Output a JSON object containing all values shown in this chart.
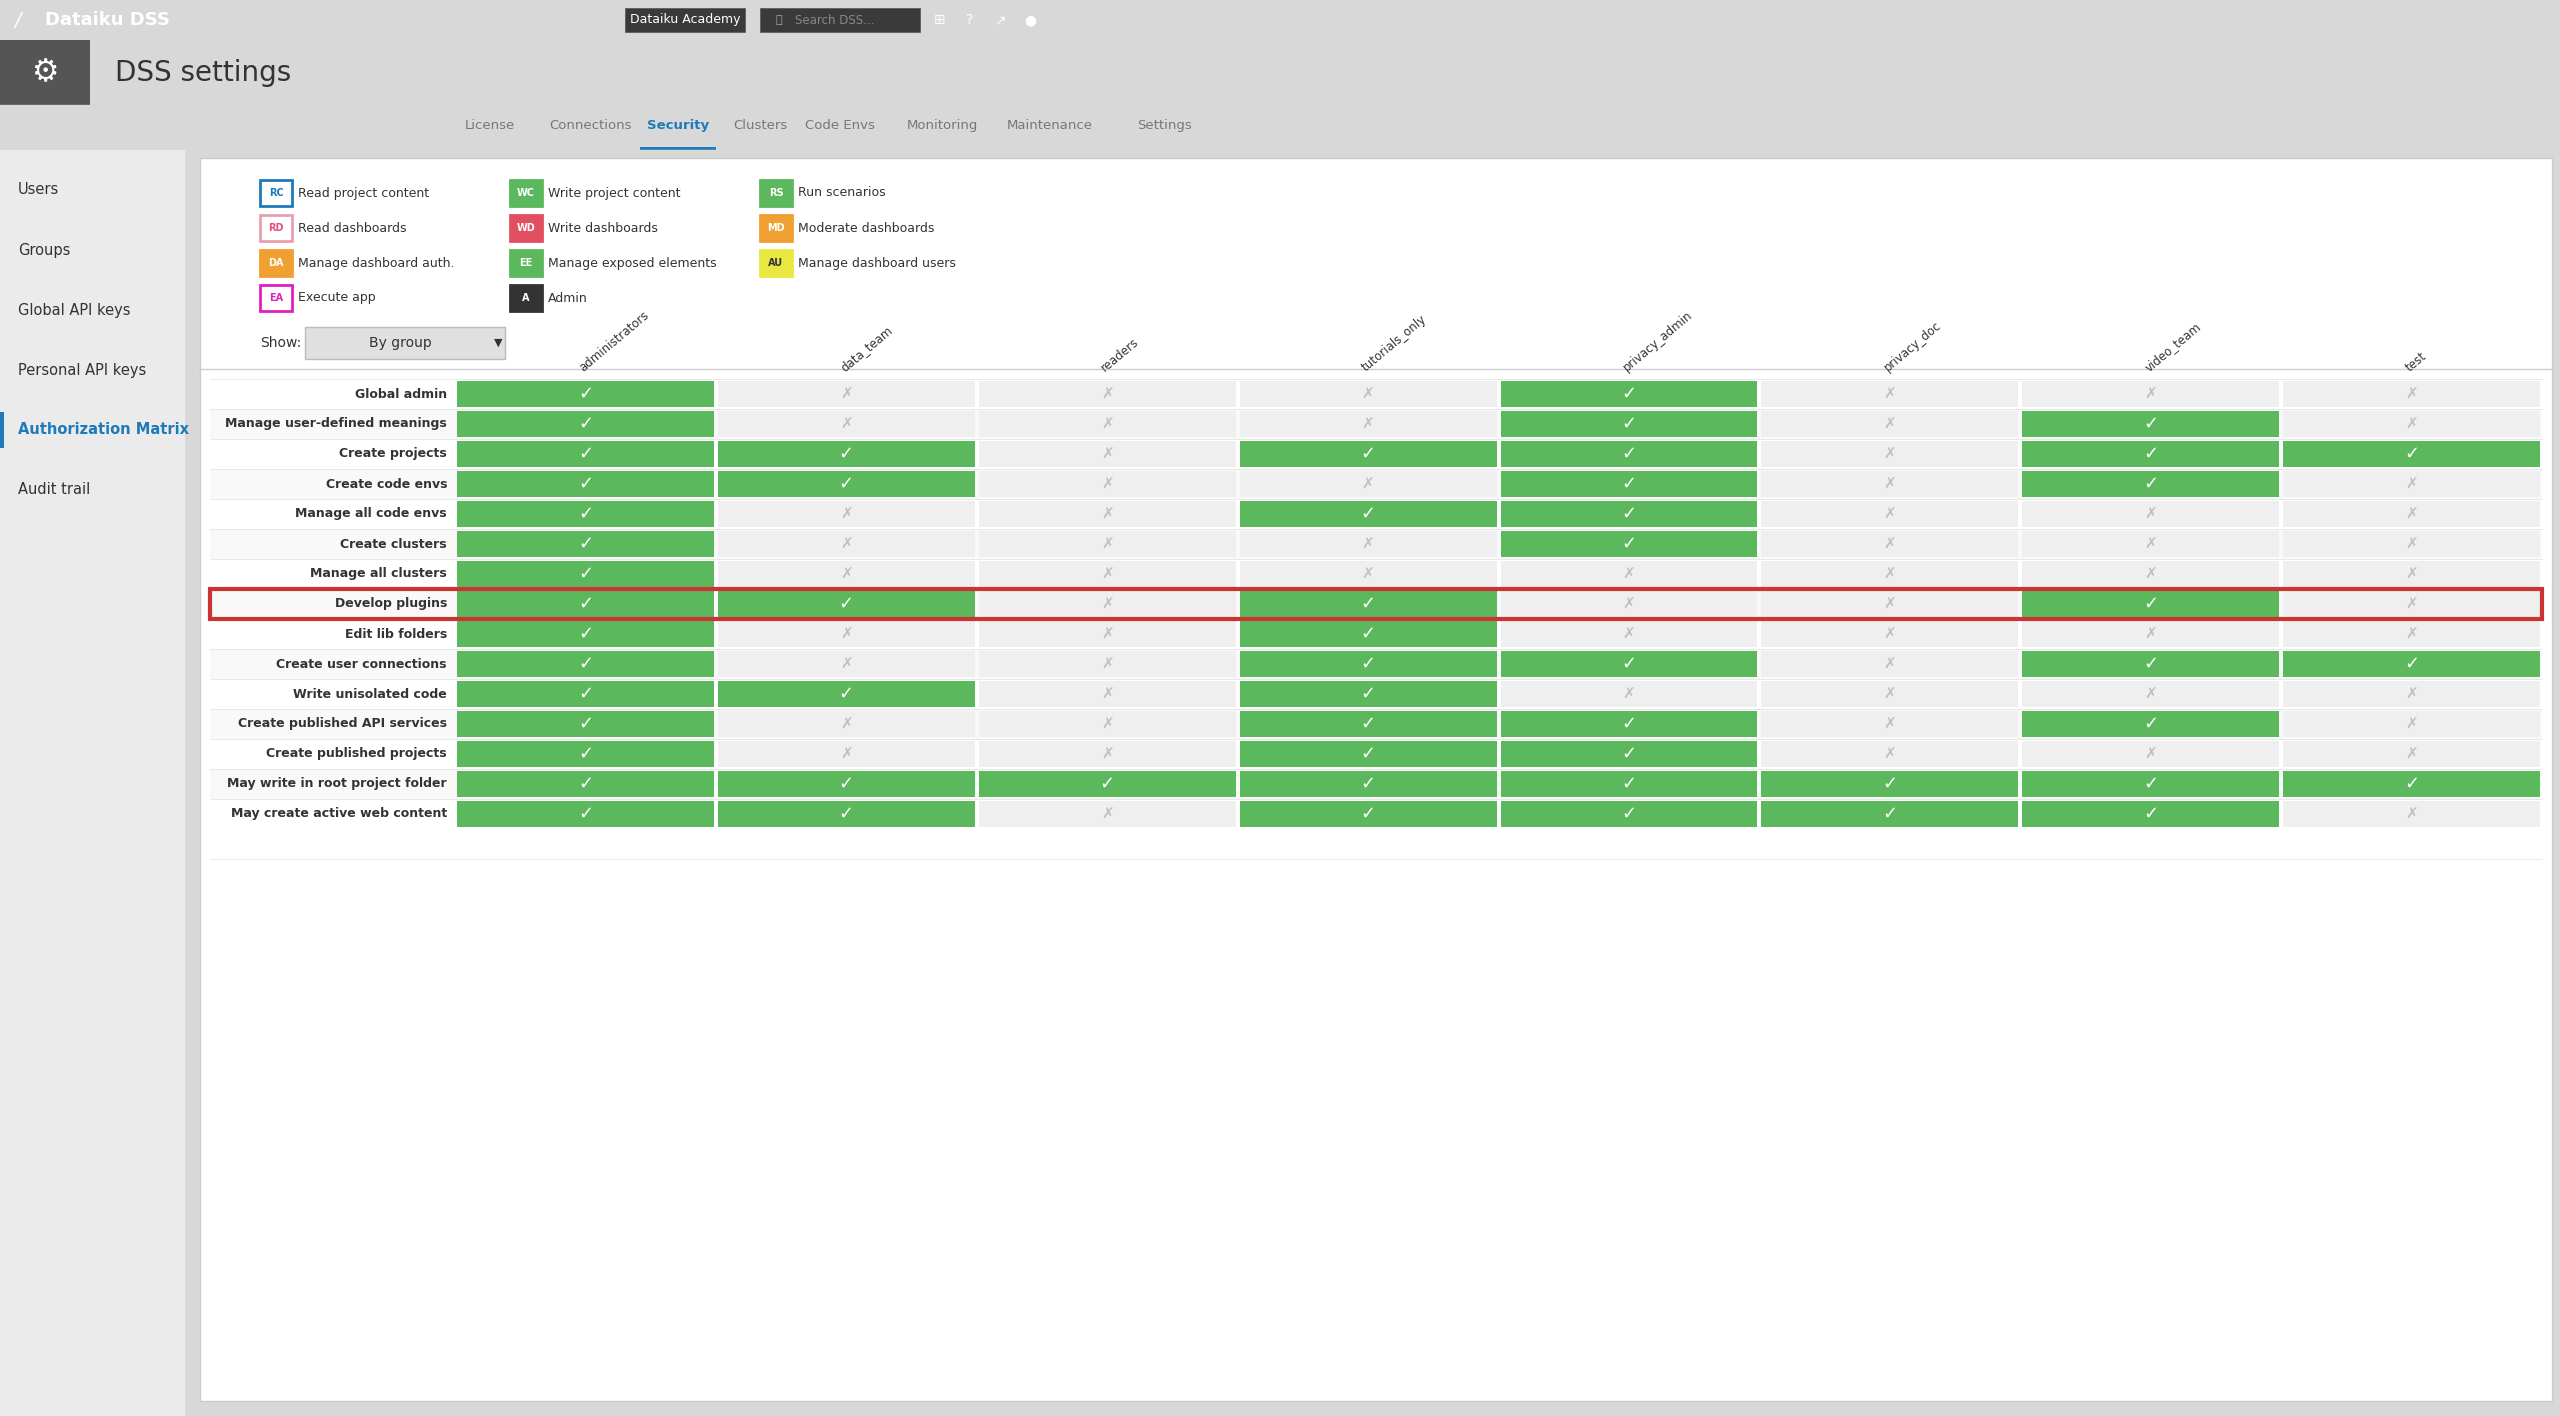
{
  "title_bar": "Dataiku DSS",
  "page_title": "DSS settings",
  "tab_active": "Security",
  "tabs": [
    "License",
    "Connections",
    "Security",
    "Clusters",
    "Code Envs",
    "Monitoring",
    "Maintenance",
    "Settings"
  ],
  "left_menu": [
    "Users",
    "Groups",
    "Global API keys",
    "Personal API keys",
    "Authorization Matrix",
    "Audit trail"
  ],
  "left_menu_active": "Authorization Matrix",
  "show_label": "By group",
  "groups": [
    "administrators",
    "data_team",
    "readers",
    "tutorials_only",
    "privacy_admin",
    "privacy_doc",
    "video_team",
    "test"
  ],
  "rows": [
    {
      "label": "Global admin",
      "values": [
        1,
        0,
        0,
        0,
        1,
        0,
        0,
        0
      ]
    },
    {
      "label": "Manage user-defined meanings",
      "values": [
        1,
        0,
        0,
        0,
        1,
        0,
        1,
        0
      ]
    },
    {
      "label": "Create projects",
      "values": [
        1,
        1,
        0,
        1,
        1,
        0,
        1,
        1
      ]
    },
    {
      "label": "Create code envs",
      "values": [
        1,
        1,
        0,
        0,
        1,
        0,
        1,
        0
      ]
    },
    {
      "label": "Manage all code envs",
      "values": [
        1,
        0,
        0,
        1,
        1,
        0,
        0,
        0
      ]
    },
    {
      "label": "Create clusters",
      "values": [
        1,
        0,
        0,
        0,
        1,
        0,
        0,
        0
      ]
    },
    {
      "label": "Manage all clusters",
      "values": [
        1,
        0,
        0,
        0,
        0,
        0,
        0,
        0
      ]
    },
    {
      "label": "Develop plugins",
      "values": [
        1,
        1,
        0,
        1,
        0,
        0,
        1,
        0
      ],
      "highlight": true
    },
    {
      "label": "Edit lib folders",
      "values": [
        1,
        0,
        0,
        1,
        0,
        0,
        0,
        0
      ]
    },
    {
      "label": "Create user connections",
      "values": [
        1,
        0,
        0,
        1,
        1,
        0,
        1,
        1
      ]
    },
    {
      "label": "Write unisolated code",
      "values": [
        1,
        1,
        0,
        1,
        0,
        0,
        0,
        0
      ]
    },
    {
      "label": "Create published API services",
      "values": [
        1,
        0,
        0,
        1,
        1,
        0,
        1,
        0
      ]
    },
    {
      "label": "Create published projects",
      "values": [
        1,
        0,
        0,
        1,
        1,
        0,
        0,
        0
      ]
    },
    {
      "label": "May write in root project folder",
      "values": [
        1,
        1,
        1,
        1,
        1,
        1,
        1,
        1
      ]
    },
    {
      "label": "May create active web content",
      "values": [
        1,
        1,
        0,
        1,
        1,
        1,
        1,
        0
      ]
    }
  ],
  "legend_rows": [
    [
      {
        "code": "RC",
        "label": "Read project content",
        "bg": "#ffffff",
        "border": "#1e7ab8",
        "tc": "#1e7ab8"
      },
      {
        "code": "WC",
        "label": "Write project content",
        "bg": "#5cb85c",
        "border": "#5cb85c",
        "tc": "#ffffff"
      },
      {
        "code": "RS",
        "label": "Run scenarios",
        "bg": "#5cb85c",
        "border": "#5cb85c",
        "tc": "#ffffff"
      }
    ],
    [
      {
        "code": "RD",
        "label": "Read dashboards",
        "bg": "#ffffff",
        "border": "#e8a0b0",
        "tc": "#e0507a"
      },
      {
        "code": "WD",
        "label": "Write dashboards",
        "bg": "#e05060",
        "border": "#e05060",
        "tc": "#ffffff"
      },
      {
        "code": "MD",
        "label": "Moderate dashboards",
        "bg": "#f0a030",
        "border": "#f0a030",
        "tc": "#ffffff"
      }
    ],
    [
      {
        "code": "DA",
        "label": "Manage dashboard auth.",
        "bg": "#f0a030",
        "border": "#f0a030",
        "tc": "#ffffff"
      },
      {
        "code": "EE",
        "label": "Manage exposed elements",
        "bg": "#5cb85c",
        "border": "#5cb85c",
        "tc": "#ffffff"
      },
      {
        "code": "AU",
        "label": "Manage dashboard users",
        "bg": "#e8e840",
        "border": "#e8e840",
        "tc": "#333333"
      }
    ],
    [
      {
        "code": "EA",
        "label": "Execute app",
        "bg": "#ffffff",
        "border": "#e020c0",
        "tc": "#e020c0"
      },
      {
        "code": "A",
        "label": "Admin",
        "bg": "#333333",
        "border": "#333333",
        "tc": "#ffffff"
      },
      null
    ]
  ],
  "cell_green": "#5cb85c",
  "cell_gray_bg": "#efefef",
  "cell_gray_check": "#c0c0c0",
  "highlight_border": "#cc3333",
  "bg_top_bar": "#222222",
  "bg_header": "#f0f0f0",
  "bg_left_panel": "#ebebeb",
  "bg_content": "#ffffff",
  "active_tab_color": "#1e7ab8",
  "active_menu_color": "#1e7ab8",
  "text_dark": "#333333",
  "text_gray": "#777777",
  "border_light": "#dddddd"
}
